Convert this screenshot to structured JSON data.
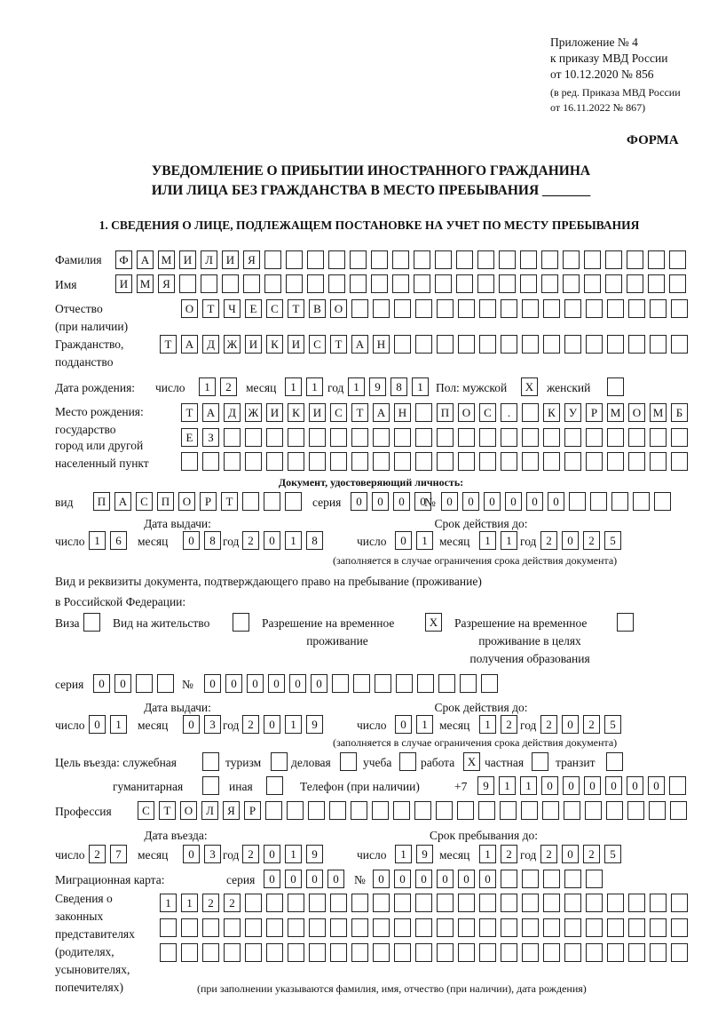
{
  "header": {
    "line1": "Приложение № 4",
    "line2": "к приказу МВД России",
    "line3": "от 10.12.2020 № 856",
    "line4": "(в ред. Приказа МВД России",
    "line5": "от 16.11.2022 № 867)",
    "form_label": "ФОРМА",
    "title1": "УВЕДОМЛЕНИЕ О ПРИБЫТИИ ИНОСТРАННОГО ГРАЖДАНИНА",
    "title2": "ИЛИ ЛИЦА БЕЗ ГРАЖДАНСТВА В МЕСТО ПРЕБЫВАНИЯ _______"
  },
  "section1": {
    "heading": "1. СВЕДЕНИЯ О ЛИЦЕ, ПОДЛЕЖАЩЕМ ПОСТАНОВКЕ НА УЧЕТ ПО МЕСТУ ПРЕБЫВАНИЯ",
    "surname_label": "Фамилия",
    "surname": "ФАМИЛИЯ",
    "name_label": "Имя",
    "name": "ИМЯ",
    "patronymic_label1": "Отчество",
    "patronymic_label2": "(при наличии)",
    "patronymic": "ОТЧЕСТВО",
    "citizenship_label1": "Гражданство,",
    "citizenship_label2": "подданство",
    "citizenship": "ТАДЖИКИСТАН",
    "birth": {
      "label": "Дата рождения:",
      "day_label": "число",
      "day": "12",
      "month_label": "месяц",
      "month": "11",
      "year_label": "год",
      "year": "1981",
      "sex_label": "Пол: мужской",
      "male": "X",
      "female_label": "женский",
      "female": ""
    },
    "birthplace": {
      "label1": "Место рождения:",
      "label2": "государство",
      "label3": "город или другой",
      "label4": "населенный пункт",
      "row1": "ТАДЖИКИСТАН ПОС. КУРМОМБ",
      "row2": "ЕЗ",
      "row3": ""
    },
    "id_doc": {
      "heading": "Документ, удостоверяющий личность:",
      "type_label": "вид",
      "type": "ПАСПОРТ",
      "series_label": "серия",
      "series": "0000",
      "number_label": "№",
      "number": "000000",
      "issue_label": "Дата выдачи:",
      "valid_label": "Срок действия до:",
      "day_label": "число",
      "month_label": "месяц",
      "year_label": "год",
      "issue_day": "16",
      "issue_month": "08",
      "issue_year": "2018",
      "valid_day": "01",
      "valid_month": "11",
      "valid_year": "2025",
      "note": "(заполняется в случае ограничения срока действия документа)"
    },
    "stay_doc": {
      "intro1": "Вид и реквизиты документа, подтверждающего право на пребывание (проживание)",
      "intro2": "в Российской Федерации:",
      "visa_label": "Виза",
      "visa": "",
      "residence_label": "Вид на жительство",
      "residence": "",
      "temp_label1": "Разрешение на временное",
      "temp_label2": "проживание",
      "temp": "X",
      "edu_label1": "Разрешение на временное",
      "edu_label2": "проживание в целях",
      "edu_label3": "получения образования",
      "edu": "",
      "series_label": "серия",
      "series": "00",
      "number_label": "№",
      "number": "000000",
      "issue_label": "Дата выдачи:",
      "valid_label": "Срок действия до:",
      "day_label": "число",
      "month_label": "месяц",
      "year_label": "год",
      "issue_day": "01",
      "issue_month": "03",
      "issue_year": "2019",
      "valid_day": "01",
      "valid_month": "12",
      "valid_year": "2025",
      "note": "(заполняется в случае ограничения срока действия документа)"
    },
    "purpose": {
      "label": "Цель въезда: служебная",
      "official": "",
      "tourism_label": "туризм",
      "tourism": "",
      "business_label": "деловая",
      "business": "",
      "study_label": "учеба",
      "study": "",
      "work_label": "работа",
      "work": "X",
      "private_label": "частная",
      "private": "",
      "transit_label": "транзит",
      "transit": "",
      "humanitarian_label": "гуманитарная",
      "humanitarian": "",
      "other_label": "иная",
      "other": ""
    },
    "phone": {
      "label": "Телефон (при наличии)",
      "prefix": "+7",
      "value": "911000000"
    },
    "profession": {
      "label": "Профессия",
      "value": "СТОЛЯР"
    },
    "entry": {
      "entry_label": "Дата въезда:",
      "stay_label": "Срок пребывания до:",
      "day_label": "число",
      "month_label": "месяц",
      "year_label": "год",
      "entry_day": "27",
      "entry_month": "03",
      "entry_year": "2019",
      "stay_day": "19",
      "stay_month": "12",
      "stay_year": "2025"
    },
    "migration_card": {
      "label": "Миграционная карта:",
      "series_label": "серия",
      "series": "0000",
      "number_label": "№",
      "number": "000000"
    },
    "representatives": {
      "label1": "Сведения о",
      "label2": "законных",
      "label3": "представителях",
      "label4": "(родителях,",
      "label5": "усыновителях,",
      "label6": "попечителях)",
      "row1": "1122",
      "row2": "",
      "row3": "",
      "note": "(при заполнении указываются фамилия, имя, отчество (при наличии), дата рождения)"
    }
  }
}
